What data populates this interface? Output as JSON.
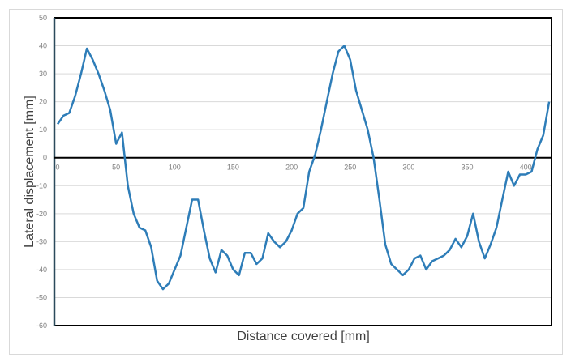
{
  "chart_data": {
    "type": "line",
    "title": "",
    "xlabel": "Distance covered [mm]",
    "ylabel": "Lateral displacement [mm]",
    "xlim": [
      0,
      423
    ],
    "ylim": [
      -60,
      50
    ],
    "x_ticks": [
      0,
      50,
      100,
      150,
      200,
      250,
      300,
      350,
      400
    ],
    "y_ticks": [
      50,
      40,
      30,
      20,
      10,
      0,
      -10,
      -20,
      -30,
      -40,
      -50,
      -60
    ],
    "grid": {
      "horizontal": true,
      "vertical": false
    },
    "legend": "none",
    "series": [
      {
        "name": "Lateral displacement",
        "color": "#2E7DB8",
        "x": [
          0,
          5,
          10,
          15,
          20,
          25,
          30,
          35,
          40,
          45,
          50,
          55,
          60,
          65,
          70,
          75,
          80,
          85,
          90,
          95,
          100,
          105,
          110,
          115,
          120,
          125,
          130,
          135,
          140,
          145,
          150,
          155,
          160,
          165,
          170,
          175,
          180,
          185,
          190,
          195,
          200,
          205,
          210,
          215,
          220,
          225,
          230,
          235,
          240,
          245,
          250,
          255,
          260,
          265,
          270,
          275,
          280,
          285,
          290,
          295,
          300,
          305,
          310,
          315,
          320,
          325,
          330,
          335,
          340,
          345,
          350,
          355,
          360,
          365,
          370,
          375,
          380,
          385,
          390,
          395,
          400,
          405,
          410,
          415,
          420
        ],
        "values": [
          12,
          15,
          16,
          22,
          30,
          39,
          35,
          30,
          24,
          17,
          5,
          9,
          -10,
          -20,
          -25,
          -26,
          -32,
          -44,
          -47,
          -45,
          -40,
          -35,
          -25,
          -15,
          -15,
          -26,
          -36,
          -41,
          -33,
          -35,
          -40,
          -42,
          -34,
          -34,
          -38,
          -36,
          -27,
          -30,
          -32,
          -30,
          -26,
          -20,
          -18,
          -5,
          1,
          10,
          20,
          30,
          38,
          40,
          35,
          24,
          17,
          10,
          0,
          -15,
          -31,
          -38,
          -40,
          -42,
          -40,
          -36,
          -35,
          -40,
          -37,
          -36,
          -35,
          -33,
          -29,
          -32,
          -28,
          -20,
          -30,
          -36,
          -31,
          -25,
          -15,
          -5,
          -10,
          -6,
          -6,
          -5,
          3,
          8,
          20
        ]
      }
    ]
  },
  "colors": {
    "line": "#2E7DB8",
    "gridline": "#d9d9d9",
    "plot_border": "#000000",
    "y_axis_line": "#2b4a5c",
    "zero_line": "#000000",
    "tick_text": "#7f7f7f",
    "axis_title_text": "#404040"
  }
}
